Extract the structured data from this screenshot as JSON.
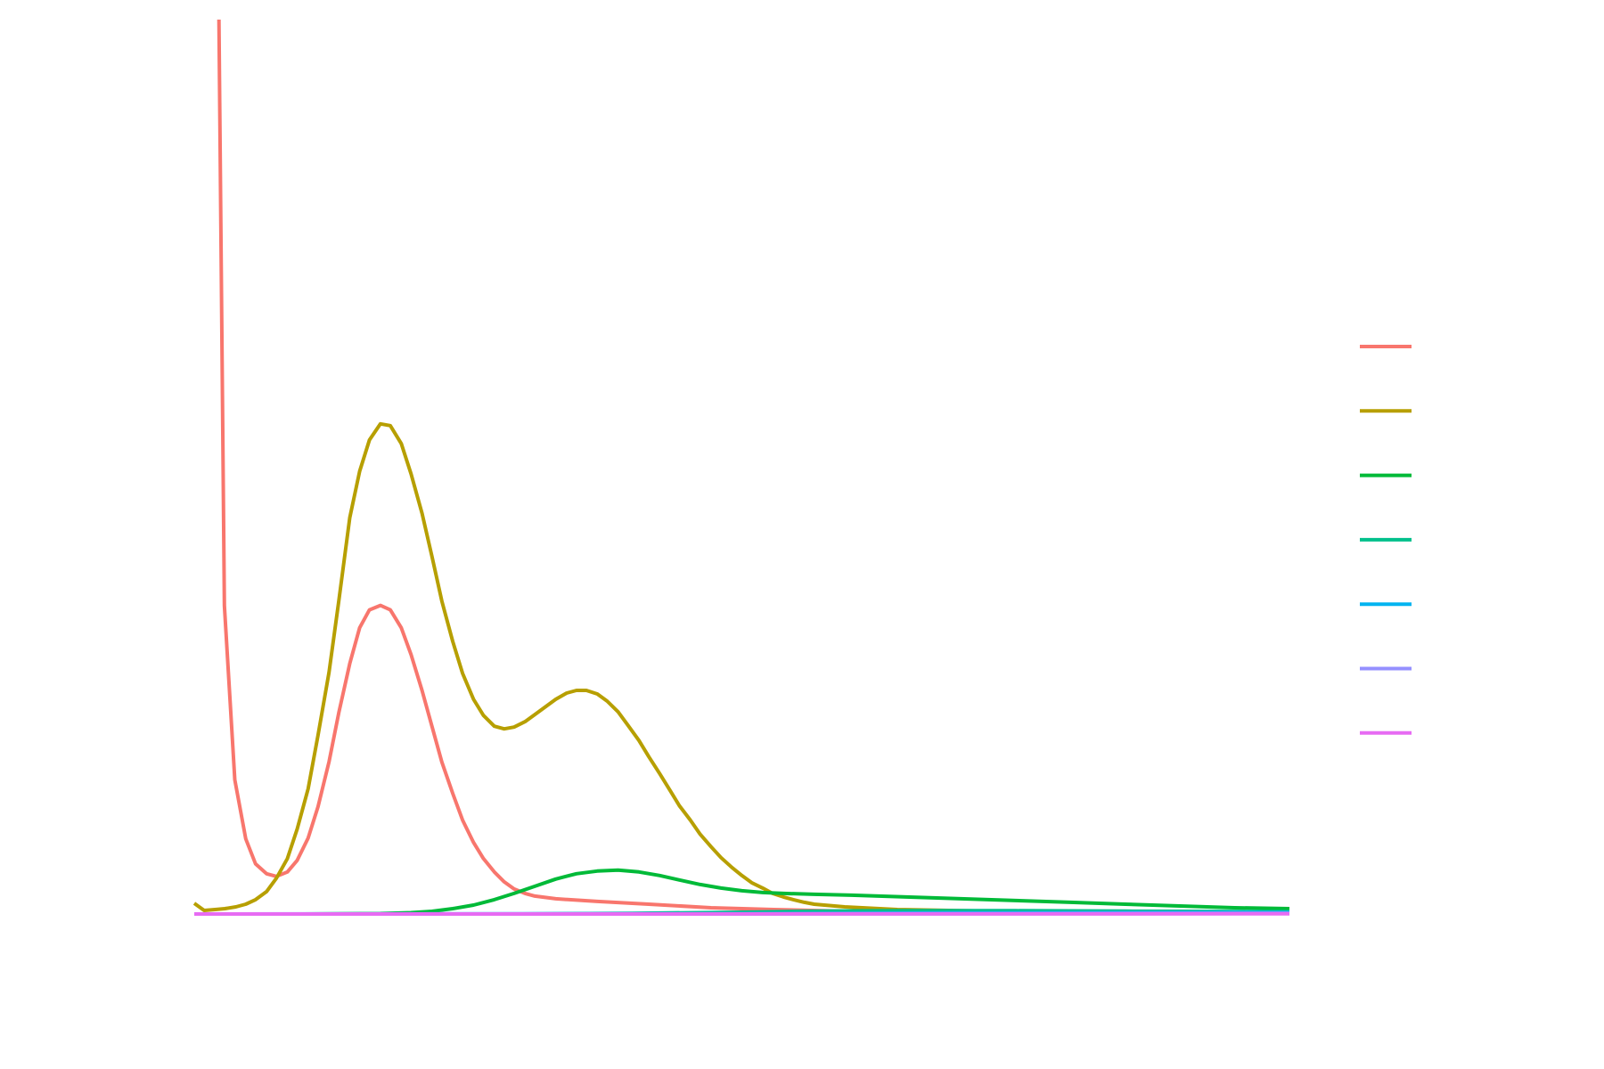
{
  "chart_data": {
    "type": "line",
    "title": "",
    "xlabel": "",
    "ylabel": "",
    "grid": false,
    "legend_position": "right",
    "xlim": [
      0,
      1
    ],
    "ylim": [
      0,
      1
    ],
    "series": [
      {
        "color": "#F8766D",
        "points": [
          [
            0.0225,
            1.0
          ],
          [
            0.0275,
            0.345
          ],
          [
            0.037,
            0.15
          ],
          [
            0.047,
            0.084
          ],
          [
            0.056,
            0.056
          ],
          [
            0.066,
            0.045
          ],
          [
            0.075,
            0.042
          ],
          [
            0.085,
            0.047
          ],
          [
            0.094,
            0.06
          ],
          [
            0.104,
            0.085
          ],
          [
            0.113,
            0.12
          ],
          [
            0.123,
            0.17
          ],
          [
            0.132,
            0.225
          ],
          [
            0.142,
            0.28
          ],
          [
            0.151,
            0.32
          ],
          [
            0.16,
            0.34
          ],
          [
            0.17,
            0.345
          ],
          [
            0.179,
            0.34
          ],
          [
            0.189,
            0.32
          ],
          [
            0.198,
            0.29
          ],
          [
            0.208,
            0.25
          ],
          [
            0.217,
            0.21
          ],
          [
            0.226,
            0.17
          ],
          [
            0.236,
            0.135
          ],
          [
            0.245,
            0.105
          ],
          [
            0.255,
            0.08
          ],
          [
            0.264,
            0.062
          ],
          [
            0.274,
            0.047
          ],
          [
            0.283,
            0.036
          ],
          [
            0.292,
            0.028
          ],
          [
            0.302,
            0.023
          ],
          [
            0.311,
            0.02
          ],
          [
            0.33,
            0.017
          ],
          [
            0.368,
            0.014
          ],
          [
            0.415,
            0.011
          ],
          [
            0.472,
            0.007
          ],
          [
            0.529,
            0.005
          ],
          [
            0.6,
            0.003
          ],
          [
            0.7,
            0.002
          ],
          [
            0.8,
            0.001
          ],
          [
            0.9,
            0.0007
          ],
          [
            1.0,
            0.0005
          ]
        ]
      },
      {
        "color": "#B79F00",
        "points": [
          [
            0.0,
            0.012
          ],
          [
            0.009,
            0.004
          ],
          [
            0.019,
            0.005
          ],
          [
            0.028,
            0.006
          ],
          [
            0.038,
            0.008
          ],
          [
            0.047,
            0.011
          ],
          [
            0.056,
            0.016
          ],
          [
            0.066,
            0.025
          ],
          [
            0.075,
            0.04
          ],
          [
            0.085,
            0.062
          ],
          [
            0.094,
            0.095
          ],
          [
            0.104,
            0.14
          ],
          [
            0.113,
            0.2
          ],
          [
            0.123,
            0.27
          ],
          [
            0.132,
            0.35
          ],
          [
            0.142,
            0.443
          ],
          [
            0.151,
            0.495
          ],
          [
            0.16,
            0.53
          ],
          [
            0.17,
            0.548
          ],
          [
            0.179,
            0.546
          ],
          [
            0.189,
            0.526
          ],
          [
            0.198,
            0.492
          ],
          [
            0.208,
            0.448
          ],
          [
            0.217,
            0.4
          ],
          [
            0.226,
            0.35
          ],
          [
            0.236,
            0.305
          ],
          [
            0.245,
            0.269
          ],
          [
            0.255,
            0.24
          ],
          [
            0.264,
            0.222
          ],
          [
            0.274,
            0.21
          ],
          [
            0.283,
            0.207
          ],
          [
            0.292,
            0.209
          ],
          [
            0.302,
            0.215
          ],
          [
            0.311,
            0.223
          ],
          [
            0.321,
            0.232
          ],
          [
            0.33,
            0.24
          ],
          [
            0.34,
            0.247
          ],
          [
            0.349,
            0.25
          ],
          [
            0.358,
            0.25
          ],
          [
            0.368,
            0.246
          ],
          [
            0.377,
            0.238
          ],
          [
            0.387,
            0.226
          ],
          [
            0.396,
            0.211
          ],
          [
            0.406,
            0.194
          ],
          [
            0.415,
            0.176
          ],
          [
            0.425,
            0.157
          ],
          [
            0.434,
            0.139
          ],
          [
            0.443,
            0.121
          ],
          [
            0.453,
            0.105
          ],
          [
            0.462,
            0.089
          ],
          [
            0.472,
            0.075
          ],
          [
            0.481,
            0.063
          ],
          [
            0.491,
            0.052
          ],
          [
            0.5,
            0.043
          ],
          [
            0.509,
            0.035
          ],
          [
            0.519,
            0.029
          ],
          [
            0.528,
            0.023
          ],
          [
            0.538,
            0.019
          ],
          [
            0.547,
            0.016
          ],
          [
            0.557,
            0.013
          ],
          [
            0.566,
            0.011
          ],
          [
            0.594,
            0.008
          ],
          [
            0.642,
            0.005
          ],
          [
            0.689,
            0.004
          ],
          [
            0.736,
            0.003
          ],
          [
            0.8,
            0.002
          ],
          [
            0.9,
            0.001
          ],
          [
            1.0,
            0.001
          ]
        ]
      },
      {
        "color": "#00BA38",
        "points": [
          [
            0.0,
            0.0
          ],
          [
            0.1,
            0.0
          ],
          [
            0.17,
            0.0005
          ],
          [
            0.198,
            0.0015
          ],
          [
            0.217,
            0.003
          ],
          [
            0.236,
            0.006
          ],
          [
            0.255,
            0.01
          ],
          [
            0.274,
            0.016
          ],
          [
            0.292,
            0.023
          ],
          [
            0.311,
            0.031
          ],
          [
            0.33,
            0.039
          ],
          [
            0.349,
            0.045
          ],
          [
            0.368,
            0.048
          ],
          [
            0.387,
            0.049
          ],
          [
            0.406,
            0.047
          ],
          [
            0.425,
            0.043
          ],
          [
            0.443,
            0.038
          ],
          [
            0.462,
            0.033
          ],
          [
            0.481,
            0.029
          ],
          [
            0.5,
            0.026
          ],
          [
            0.519,
            0.024
          ],
          [
            0.538,
            0.023
          ],
          [
            0.566,
            0.022
          ],
          [
            0.6,
            0.021
          ],
          [
            0.65,
            0.019
          ],
          [
            0.7,
            0.017
          ],
          [
            0.75,
            0.015
          ],
          [
            0.8,
            0.013
          ],
          [
            0.85,
            0.011
          ],
          [
            0.9,
            0.009
          ],
          [
            0.95,
            0.007
          ],
          [
            1.0,
            0.006
          ]
        ]
      },
      {
        "color": "#00C08B",
        "points": [
          [
            0.0,
            0.0
          ],
          [
            0.3,
            0.0
          ],
          [
            0.4,
            0.0008
          ],
          [
            0.5,
            0.002
          ],
          [
            0.55,
            0.003
          ],
          [
            0.6,
            0.0035
          ],
          [
            0.65,
            0.0038
          ],
          [
            0.7,
            0.0038
          ],
          [
            0.75,
            0.0037
          ],
          [
            0.8,
            0.0035
          ],
          [
            0.85,
            0.0032
          ],
          [
            0.9,
            0.003
          ],
          [
            0.95,
            0.0028
          ],
          [
            1.0,
            0.0026
          ]
        ]
      },
      {
        "color": "#00B4F0",
        "points": [
          [
            0.0,
            0.0
          ],
          [
            0.5,
            0.0003
          ],
          [
            0.6,
            0.0008
          ],
          [
            0.7,
            0.0012
          ],
          [
            0.8,
            0.0015
          ],
          [
            0.9,
            0.0017
          ],
          [
            1.0,
            0.0018
          ]
        ]
      },
      {
        "color": "#9590FF",
        "points": [
          [
            0.0,
            0.0
          ],
          [
            0.6,
            0.0002
          ],
          [
            0.8,
            0.0005
          ],
          [
            1.0,
            0.0008
          ]
        ]
      },
      {
        "color": "#E76BF3",
        "points": [
          [
            0.0,
            0.0
          ],
          [
            0.8,
            0.0001
          ],
          [
            1.0,
            0.0003
          ]
        ]
      }
    ]
  }
}
